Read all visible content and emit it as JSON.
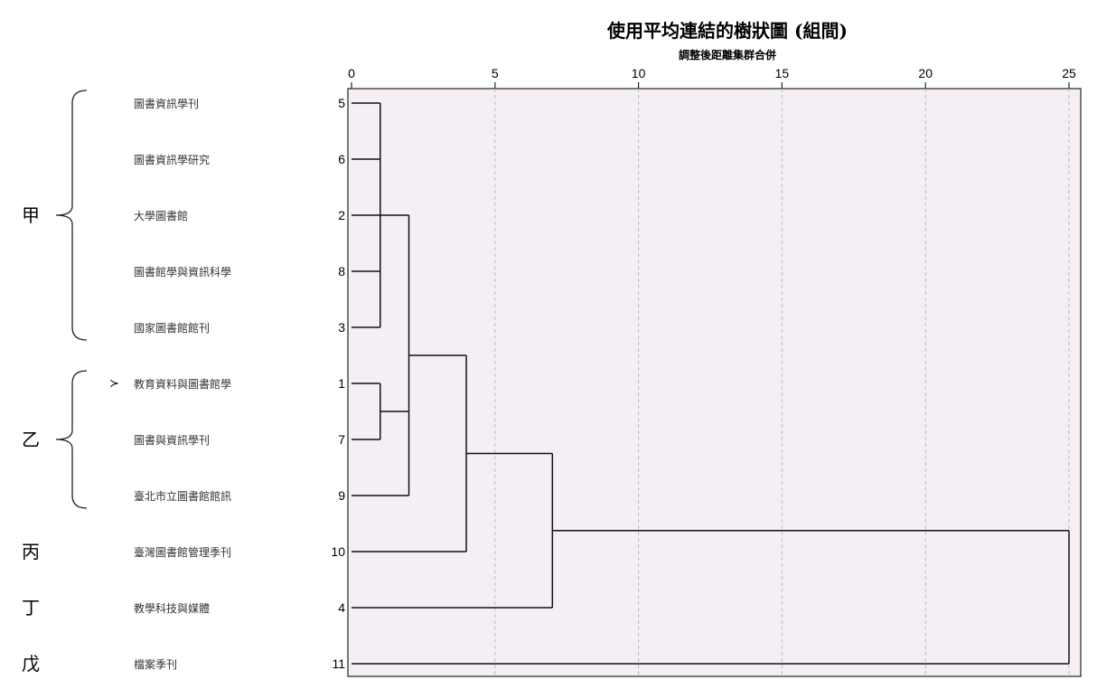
{
  "chart_data": {
    "type": "dendrogram",
    "title": "使用平均連結的樹狀圖 (組間)",
    "xlabel": "調整後距離集群合併",
    "xlim": [
      0,
      25
    ],
    "x_ticks": [
      "0",
      "5",
      "10",
      "15",
      "20",
      "25"
    ],
    "plot_background": "#f5eff5",
    "grid": true,
    "leaves": [
      {
        "case": "5",
        "label": "圖書資訊學刊"
      },
      {
        "case": "6",
        "label": "圖書資訊學研究"
      },
      {
        "case": "2",
        "label": "大學圖書館"
      },
      {
        "case": "8",
        "label": "圖書館學與資訊科學"
      },
      {
        "case": "3",
        "label": "國家圖書館館刊"
      },
      {
        "case": "1",
        "label": "教育資料與圖書館學"
      },
      {
        "case": "7",
        "label": "圖書與資訊學刊"
      },
      {
        "case": "9",
        "label": "臺北市立圖書館館訊"
      },
      {
        "case": "10",
        "label": "臺灣圖書館管理季刊"
      },
      {
        "case": "4",
        "label": "教學科技與媒體"
      },
      {
        "case": "11",
        "label": "檔案季刊"
      }
    ],
    "merges": [
      {
        "id": "m1",
        "children": [
          "L0",
          "L1",
          "L2",
          "L3",
          "L4"
        ],
        "height": 1.0
      },
      {
        "id": "m2",
        "children": [
          "L5",
          "L6"
        ],
        "height": 1.0
      },
      {
        "id": "m3",
        "children": [
          "m1",
          "m2",
          "L7"
        ],
        "height": 2.0
      },
      {
        "id": "m4",
        "children": [
          "m3",
          "L8"
        ],
        "height": 4.0
      },
      {
        "id": "m5",
        "children": [
          "m4",
          "L9"
        ],
        "height": 7.0
      },
      {
        "id": "m6",
        "children": [
          "m5",
          "L10"
        ],
        "height": 25.0
      }
    ],
    "groups": [
      {
        "label": "甲",
        "leaf_range": [
          0,
          4
        ],
        "brace": true
      },
      {
        "label": "乙",
        "leaf_range": [
          5,
          7
        ],
        "brace": true
      },
      {
        "label": "丙",
        "leaf_range": [
          8,
          8
        ],
        "brace": false
      },
      {
        "label": "丁",
        "leaf_range": [
          9,
          9
        ],
        "brace": false
      },
      {
        "label": "戊",
        "leaf_range": [
          10,
          10
        ],
        "brace": false
      }
    ],
    "marker": {
      "symbol": "≻",
      "leaf_index": 5
    }
  }
}
